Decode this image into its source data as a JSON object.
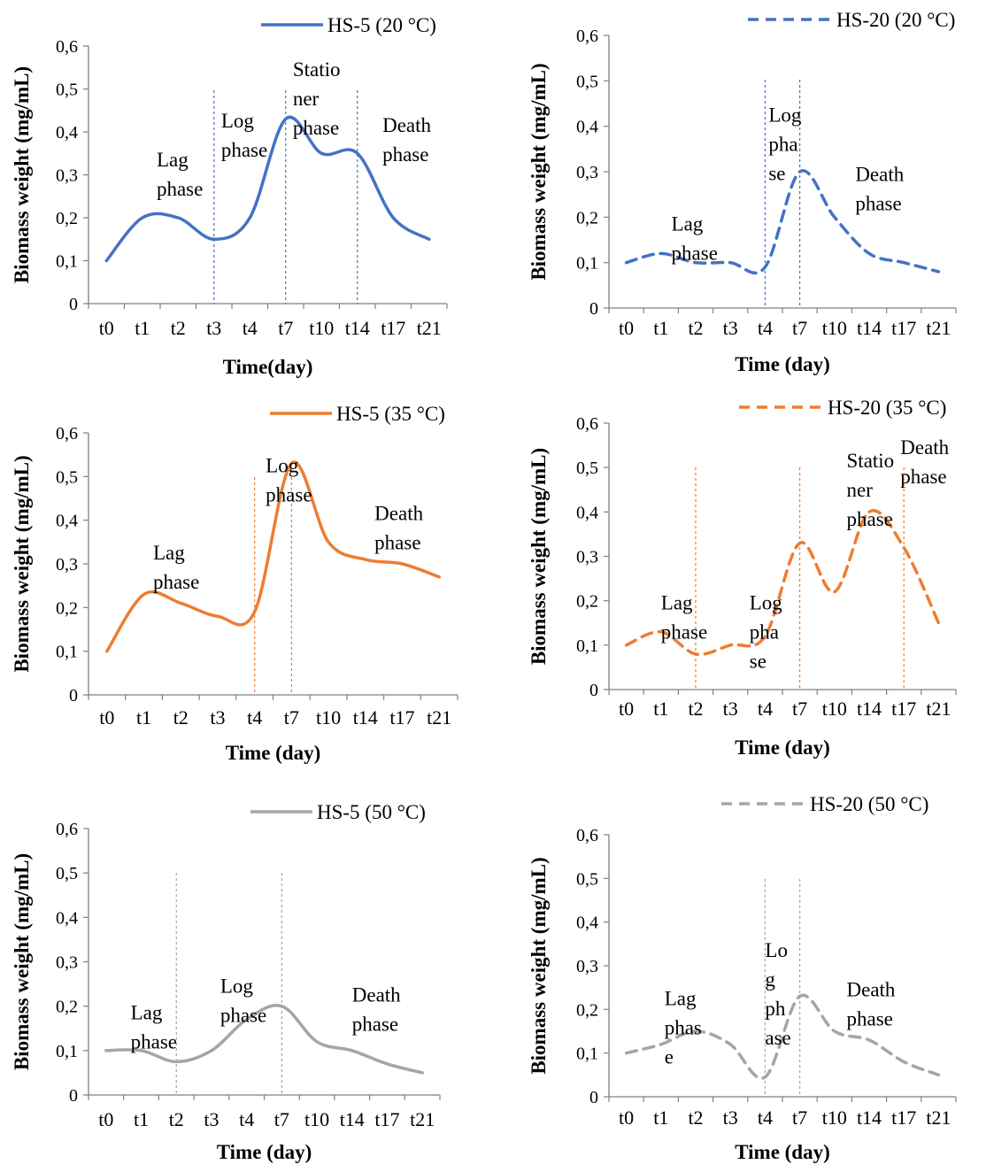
{
  "colors": {
    "blue": "#4472c4",
    "orange": "#ed7d31",
    "gray": "#a5a5a5",
    "axis": "#808080"
  },
  "chart_data": [
    {
      "type": "line",
      "categories": [
        "t0",
        "t1",
        "t2",
        "t3",
        "t4",
        "t7",
        "t10",
        "t14",
        "t17",
        "t21"
      ],
      "series": [
        {
          "name": "HS-5 (20 °C)",
          "values": [
            0.1,
            0.2,
            0.2,
            0.15,
            0.2,
            0.43,
            0.35,
            0.35,
            0.2,
            0.15
          ],
          "color": "#4472c4",
          "dashed": false
        }
      ],
      "xlabel": "Time(day)",
      "ylabel": "Biomass weight (mg/mL)",
      "ylim": [
        0,
        0.6
      ],
      "yticks": [
        "0",
        "0,1",
        "0,2",
        "0,3",
        "0,4",
        "0,5",
        "0,6"
      ],
      "phase_lines_at": [
        3,
        5,
        7
      ],
      "annotations": [
        {
          "lines": [
            "Lag",
            "phase"
          ],
          "x": 1.4,
          "y": 0.32
        },
        {
          "lines": [
            "Log",
            "phase"
          ],
          "x": 3.2,
          "y": 0.41
        },
        {
          "lines": [
            "Statio",
            "ner",
            "phase"
          ],
          "x": 5.2,
          "y": 0.53
        },
        {
          "lines": [
            "Death",
            "phase"
          ],
          "x": 7.7,
          "y": 0.4
        }
      ],
      "grid": false,
      "legend": "top"
    },
    {
      "type": "line",
      "categories": [
        "t0",
        "t1",
        "t2",
        "t3",
        "t4",
        "t7",
        "t10",
        "t14",
        "t17",
        "t21"
      ],
      "series": [
        {
          "name": "HS-20 (20 °C)",
          "values": [
            0.1,
            0.12,
            0.1,
            0.1,
            0.09,
            0.3,
            0.2,
            0.12,
            0.1,
            0.08
          ],
          "color": "#4472c4",
          "dashed": true
        }
      ],
      "xlabel": "Time (day)",
      "ylabel": "Biomass weight (mg/mL)",
      "ylim": [
        0,
        0.6
      ],
      "yticks": [
        "0",
        "0,1",
        "0,2",
        "0,3",
        "0,4",
        "0,5",
        "0,6"
      ],
      "phase_lines_at": [
        4,
        5
      ],
      "annotations": [
        {
          "lines": [
            "Lag",
            "phase"
          ],
          "x": 1.3,
          "y": 0.17
        },
        {
          "lines": [
            "Log",
            "pha",
            "se"
          ],
          "x": 4.1,
          "y": 0.41
        },
        {
          "lines": [
            "Death",
            "phase"
          ],
          "x": 6.6,
          "y": 0.28
        }
      ],
      "grid": false,
      "legend": "top"
    },
    {
      "type": "line",
      "categories": [
        "t0",
        "t1",
        "t2",
        "t3",
        "t4",
        "t7",
        "t10",
        "t14",
        "t17",
        "t21"
      ],
      "series": [
        {
          "name": "HS-5 (35 °C)",
          "values": [
            0.1,
            0.23,
            0.21,
            0.18,
            0.19,
            0.53,
            0.35,
            0.31,
            0.3,
            0.27
          ],
          "color": "#ed7d31",
          "dashed": false
        }
      ],
      "xlabel": "Time (day)",
      "ylabel": "Biomass weight (mg/mL)",
      "ylim": [
        0,
        0.6
      ],
      "yticks": [
        "0",
        "0,1",
        "0,2",
        "0,3",
        "0,4",
        "0,5",
        "0,6"
      ],
      "phase_lines_at": [
        4,
        5
      ],
      "annotations": [
        {
          "lines": [
            "Lag",
            "phase"
          ],
          "x": 1.25,
          "y": 0.31
        },
        {
          "lines": [
            "Log",
            "phase"
          ],
          "x": 4.3,
          "y": 0.51
        },
        {
          "lines": [
            "Death",
            "phase"
          ],
          "x": 7.25,
          "y": 0.4
        }
      ],
      "grid": false,
      "legend": "top"
    },
    {
      "type": "line",
      "categories": [
        "t0",
        "t1",
        "t2",
        "t3",
        "t4",
        "t7",
        "t10",
        "t14",
        "t17",
        "t21"
      ],
      "series": [
        {
          "name": "HS-20 (35 °C)",
          "values": [
            0.1,
            0.13,
            0.08,
            0.1,
            0.12,
            0.33,
            0.22,
            0.4,
            0.32,
            0.15
          ],
          "color": "#ed7d31",
          "dashed": true
        }
      ],
      "xlabel": "Time (day)",
      "ylabel": "Biomass weight (mg/mL)",
      "ylim": [
        0,
        0.6
      ],
      "yticks": [
        "0",
        "0,1",
        "0,2",
        "0,3",
        "0,4",
        "0,5",
        "0,6"
      ],
      "phase_lines_at": [
        2,
        5,
        8
      ],
      "annotations": [
        {
          "lines": [
            "Lag",
            "phase"
          ],
          "x": 1.0,
          "y": 0.18
        },
        {
          "lines": [
            "Log",
            "pha",
            "se"
          ],
          "x": 3.55,
          "y": 0.18
        },
        {
          "lines": [
            "Statio",
            "ner",
            "phase"
          ],
          "x": 6.35,
          "y": 0.5
        },
        {
          "lines": [
            "Death",
            "phase"
          ],
          "x": 7.9,
          "y": 0.53
        }
      ],
      "grid": false,
      "legend": "top"
    },
    {
      "type": "line",
      "categories": [
        "t0",
        "t1",
        "t2",
        "t3",
        "t4",
        "t7",
        "t10",
        "t14",
        "t17",
        "t21"
      ],
      "series": [
        {
          "name": "HS-5 (50 °C)",
          "values": [
            0.1,
            0.1,
            0.075,
            0.1,
            0.17,
            0.2,
            0.12,
            0.1,
            0.07,
            0.05
          ],
          "color": "#a5a5a5",
          "dashed": false
        }
      ],
      "xlabel": "Time (day)",
      "ylabel": "Biomass weight (mg/mL)",
      "ylim": [
        0,
        0.6
      ],
      "yticks": [
        "0",
        "0,1",
        "0,2",
        "0,3",
        "0,4",
        "0,5",
        "0,6"
      ],
      "phase_lines_at": [
        2,
        5
      ],
      "annotations": [
        {
          "lines": [
            "Lag",
            "phase"
          ],
          "x": 0.7,
          "y": 0.17
        },
        {
          "lines": [
            "Log",
            "phase"
          ],
          "x": 3.25,
          "y": 0.23
        },
        {
          "lines": [
            "Death",
            "phase"
          ],
          "x": 7.0,
          "y": 0.21
        }
      ],
      "grid": false,
      "legend": "top"
    },
    {
      "type": "line",
      "categories": [
        "t0",
        "t1",
        "t2",
        "t3",
        "t4",
        "t7",
        "t10",
        "t14",
        "t17",
        "t21"
      ],
      "series": [
        {
          "name": "HS-20 (50 °C)",
          "values": [
            0.1,
            0.12,
            0.15,
            0.12,
            0.045,
            0.23,
            0.15,
            0.13,
            0.08,
            0.05
          ],
          "color": "#a5a5a5",
          "dashed": true
        }
      ],
      "xlabel": "Time (day)",
      "ylabel": "Biomass weight (mg/mL)",
      "ylim": [
        0,
        0.6
      ],
      "yticks": [
        "0",
        "0,1",
        "0,2",
        "0,3",
        "0,4",
        "0,5",
        "0,6"
      ],
      "phase_lines_at": [
        4,
        5
      ],
      "annotations": [
        {
          "lines": [
            "Lag",
            "phas",
            "e"
          ],
          "x": 1.1,
          "y": 0.21
        },
        {
          "lines": [
            "Lo",
            "g",
            "ph",
            "ase"
          ],
          "x": 4.0,
          "y": 0.32
        },
        {
          "lines": [
            "Death",
            "phase"
          ],
          "x": 6.35,
          "y": 0.23
        }
      ],
      "grid": false,
      "legend": "top"
    }
  ]
}
